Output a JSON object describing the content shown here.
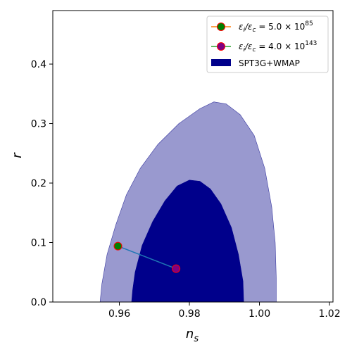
{
  "chart_data": {
    "type": "contour-scatter",
    "xlabel": "n",
    "xlabel_sub": "s",
    "ylabel": "r",
    "xlim": [
      0.941,
      1.021
    ],
    "ylim": [
      0.0,
      0.49
    ],
    "xticks": [
      0.96,
      0.98,
      1.0,
      1.02
    ],
    "xtick_labels": [
      "0.96",
      "0.98",
      "1.00",
      "1.02"
    ],
    "yticks": [
      0.0,
      0.1,
      0.2,
      0.3,
      0.4
    ],
    "ytick_labels": [
      "0.0",
      "0.1",
      "0.2",
      "0.3",
      "0.4"
    ],
    "grid": false,
    "legend_position": "top-right",
    "legend": [
      {
        "label_base": "ε",
        "label_sub1": "i",
        "label_mid": "/ε",
        "label_sub2": "c",
        "label_rest": " = 5.0 × 10",
        "label_exp": "85",
        "line_color": "#ff7f0e",
        "marker_face": "#008000",
        "marker_edge": "#ff0000"
      },
      {
        "label_base": "ε",
        "label_sub1": "i",
        "label_mid": "/ε",
        "label_sub2": "c",
        "label_rest": " = 4.0 × 10",
        "label_exp": "143",
        "line_color": "#2ca02c",
        "marker_face": "#800080",
        "marker_edge": "#ff0000"
      },
      {
        "label": "SPT3G+WMAP",
        "patch_color": "#00008b"
      }
    ],
    "contour_outer": {
      "color": "#9999cf",
      "edge": "#3a3aa0",
      "points": [
        [
          0.9545,
          0.0
        ],
        [
          0.955,
          0.03
        ],
        [
          0.9565,
          0.08
        ],
        [
          0.959,
          0.13
        ],
        [
          0.962,
          0.18
        ],
        [
          0.966,
          0.225
        ],
        [
          0.971,
          0.265
        ],
        [
          0.977,
          0.3
        ],
        [
          0.983,
          0.325
        ],
        [
          0.987,
          0.3365
        ],
        [
          0.9905,
          0.333
        ],
        [
          0.9945,
          0.315
        ],
        [
          0.9985,
          0.28
        ],
        [
          1.0015,
          0.225
        ],
        [
          1.0035,
          0.16
        ],
        [
          1.0045,
          0.1
        ],
        [
          1.0048,
          0.04
        ],
        [
          1.0048,
          0.0
        ]
      ]
    },
    "contour_inner": {
      "color": "#00008b",
      "points": [
        [
          0.9635,
          0.0
        ],
        [
          0.9638,
          0.02
        ],
        [
          0.9645,
          0.05
        ],
        [
          0.9665,
          0.095
        ],
        [
          0.9695,
          0.135
        ],
        [
          0.973,
          0.17
        ],
        [
          0.9765,
          0.195
        ],
        [
          0.98,
          0.205
        ],
        [
          0.983,
          0.203
        ],
        [
          0.986,
          0.19
        ],
        [
          0.989,
          0.165
        ],
        [
          0.992,
          0.125
        ],
        [
          0.994,
          0.08
        ],
        [
          0.9953,
          0.035
        ],
        [
          0.9955,
          0.0
        ]
      ]
    },
    "series": [
      {
        "x": [
          0.9596,
          0.9762
        ],
        "y": [
          0.094,
          0.056
        ],
        "line_color": "#1f77b4"
      }
    ],
    "points": [
      {
        "x": 0.9596,
        "y": 0.094,
        "face": "#008000",
        "edge": "#ff0000"
      },
      {
        "x": 0.9762,
        "y": 0.056,
        "face": "#800080",
        "edge": "#ff0000"
      }
    ]
  }
}
